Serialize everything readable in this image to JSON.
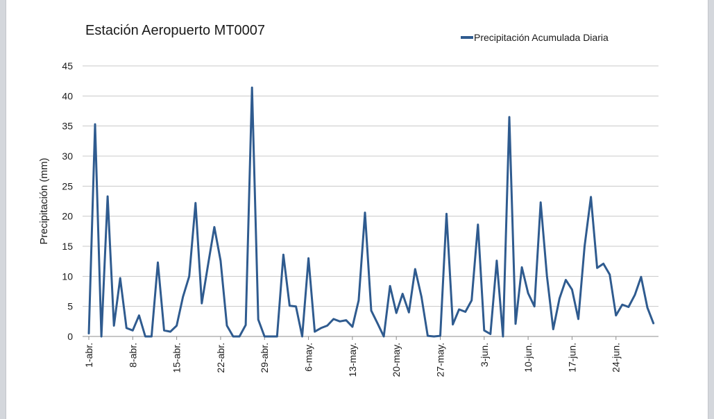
{
  "chart_data": {
    "type": "line",
    "title": "Estación  Aeropuerto MT0007",
    "ylabel": "Precipitación (mm)",
    "xlabel": "",
    "ylim": [
      0,
      45
    ],
    "yticks": [
      0,
      5,
      10,
      15,
      20,
      25,
      30,
      35,
      40,
      45
    ],
    "grid": true,
    "legend_position": "top-right",
    "color": "#2f5b8f",
    "xtick_labels": [
      {
        "index": 0,
        "label": "1-abr."
      },
      {
        "index": 7,
        "label": "8-abr."
      },
      {
        "index": 14,
        "label": "15-abr."
      },
      {
        "index": 21,
        "label": "22-abr."
      },
      {
        "index": 28,
        "label": "29-abr."
      },
      {
        "index": 35,
        "label": "6-may."
      },
      {
        "index": 42,
        "label": "13-may."
      },
      {
        "index": 49,
        "label": "20-may."
      },
      {
        "index": 56,
        "label": "27-may."
      },
      {
        "index": 63,
        "label": "3-jun."
      },
      {
        "index": 70,
        "label": "10-jun."
      },
      {
        "index": 77,
        "label": "17-jun."
      },
      {
        "index": 84,
        "label": "24-jun."
      }
    ],
    "series": [
      {
        "name": "Precipitación Acumulada Diaria",
        "values": [
          0.4,
          35.3,
          0,
          23.3,
          1.8,
          9.7,
          1.4,
          1.0,
          3.5,
          0,
          0,
          12.3,
          1.0,
          0.8,
          1.8,
          6.6,
          10.0,
          22.2,
          5.5,
          11.9,
          18.2,
          12.6,
          1.8,
          0,
          0,
          1.9,
          41.4,
          2.8,
          0,
          0,
          0,
          13.6,
          5.1,
          5.0,
          0,
          13.0,
          0.8,
          1.4,
          1.8,
          2.9,
          2.5,
          2.7,
          1.6,
          6.0,
          20.6,
          4.3,
          2.2,
          0,
          8.4,
          3.9,
          7.1,
          4.0,
          11.2,
          6.6,
          0.1,
          0,
          0.1,
          20.4,
          2.0,
          4.5,
          4.1,
          6.0,
          18.6,
          1.0,
          0.4,
          12.6,
          0,
          36.5,
          2.1,
          11.5,
          7.2,
          5.0,
          22.3,
          10.1,
          1.2,
          6.3,
          9.4,
          7.8,
          2.9,
          15.0,
          23.2,
          11.4,
          12.1,
          10.3,
          3.5,
          5.3,
          4.9,
          6.9,
          9.9,
          4.8,
          2.1
        ]
      }
    ]
  }
}
